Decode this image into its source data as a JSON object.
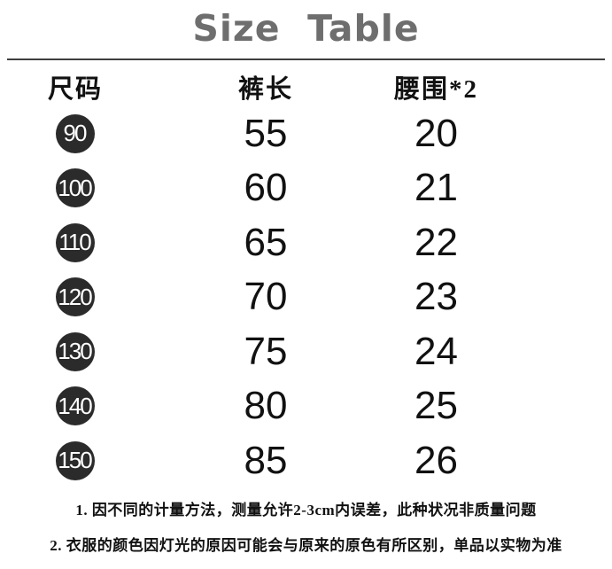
{
  "title": "Size  Table",
  "table": {
    "columns": [
      "尺码",
      "裤长",
      "腰围*2"
    ],
    "rows": [
      {
        "size": "90",
        "pants_length": "55",
        "waist_x2": "20"
      },
      {
        "size": "100",
        "pants_length": "60",
        "waist_x2": "21"
      },
      {
        "size": "110",
        "pants_length": "65",
        "waist_x2": "22"
      },
      {
        "size": "120",
        "pants_length": "70",
        "waist_x2": "23"
      },
      {
        "size": "130",
        "pants_length": "75",
        "waist_x2": "24"
      },
      {
        "size": "140",
        "pants_length": "80",
        "waist_x2": "25"
      },
      {
        "size": "150",
        "pants_length": "85",
        "waist_x2": "26"
      }
    ]
  },
  "notes": [
    "1. 因不同的计量方法，测量允许2-3cm内误差，此种状况非质量问题",
    "2. 衣服的颜色因灯光的原因可能会与原来的原色有所区别，单品以实物为准"
  ],
  "colors": {
    "title": "#6e6e6e",
    "rule": "#3f3f3f",
    "text": "#111111",
    "badge_bg": "#2b2b2b",
    "badge_text": "#ffffff"
  }
}
